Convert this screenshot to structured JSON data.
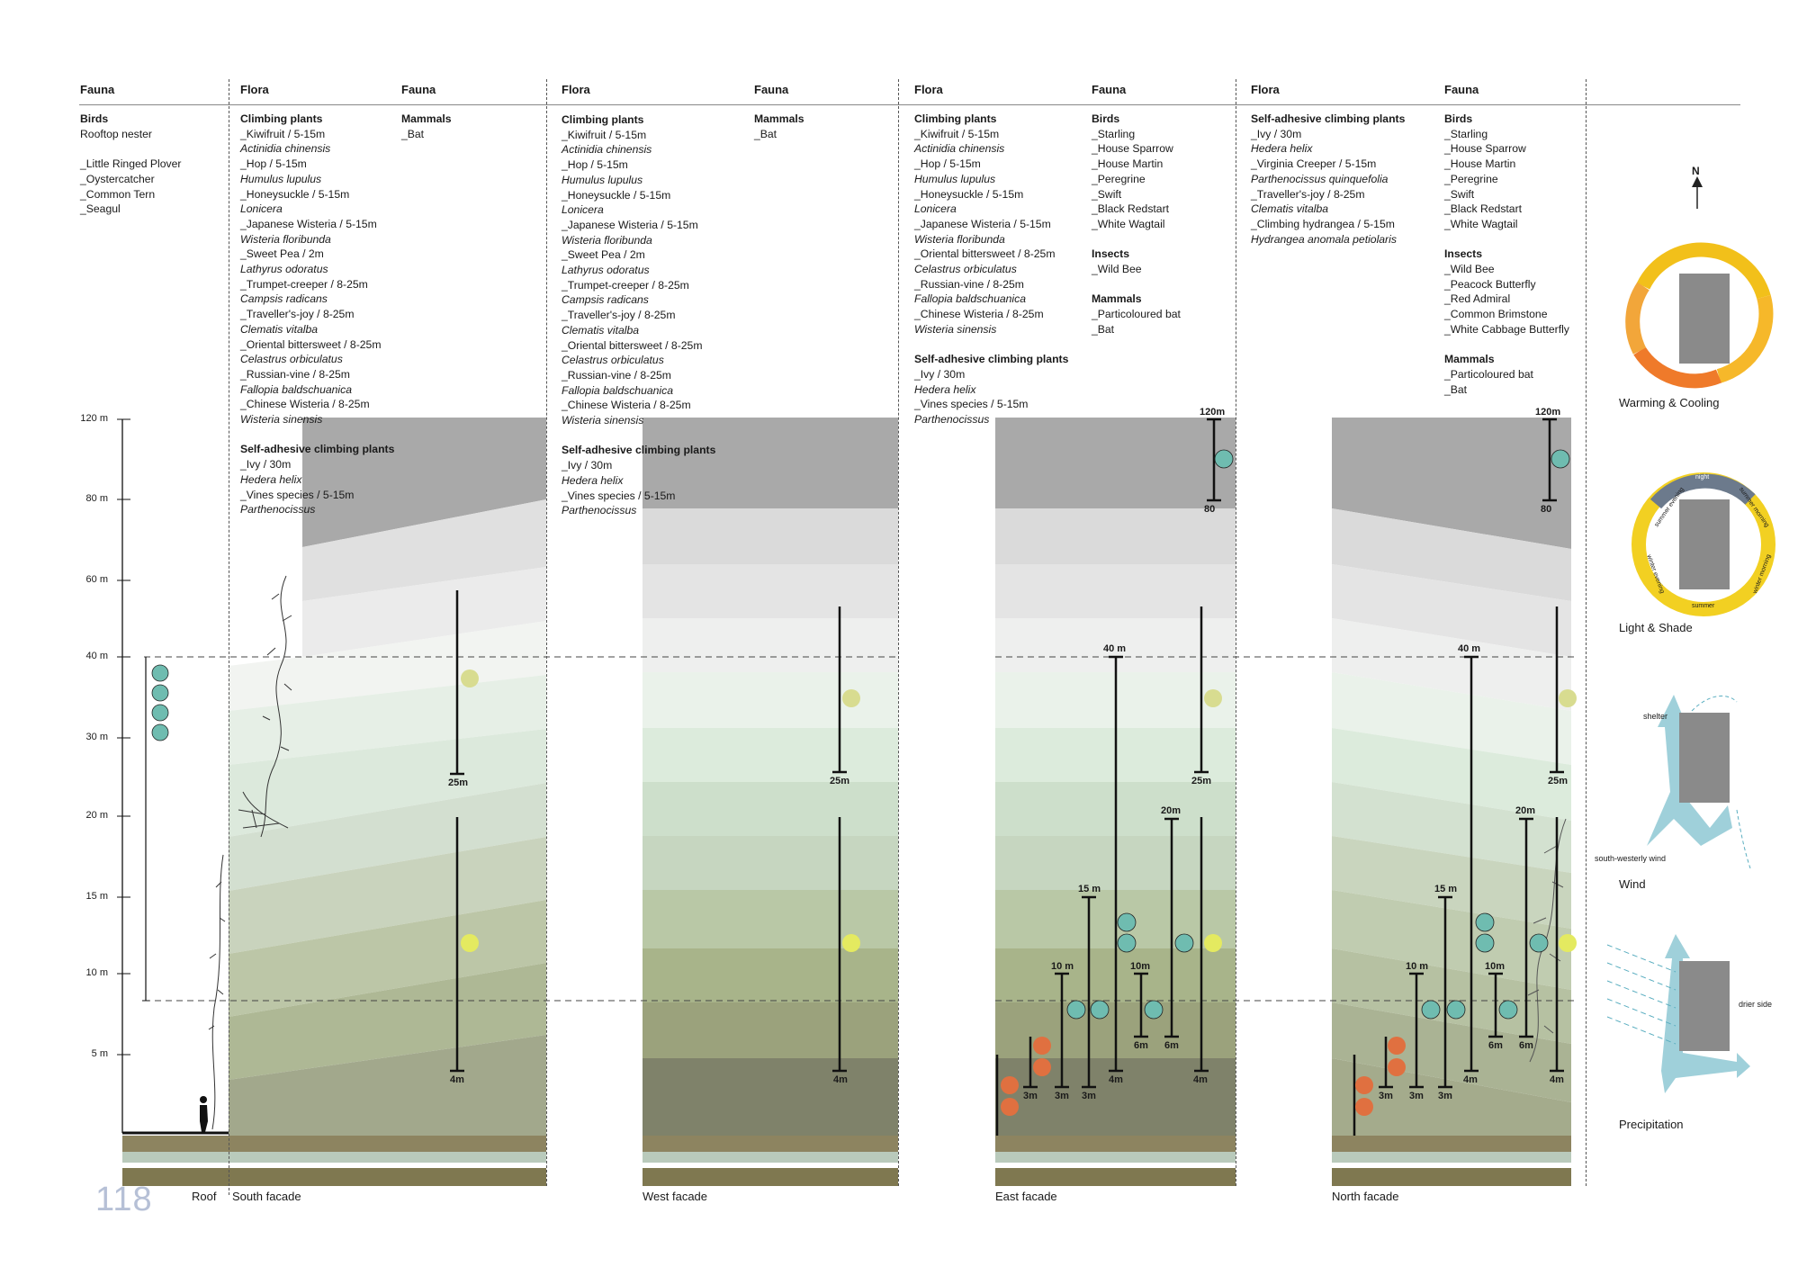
{
  "page_number": "118",
  "columns": [
    {
      "header": "Fauna",
      "content_key": "roof_fauna"
    },
    {
      "header": "Flora",
      "content_key": "south_flora"
    },
    {
      "header": "Fauna",
      "content_key": "south_fauna"
    },
    {
      "header": "Flora",
      "content_key": "west_flora"
    },
    {
      "header": "Fauna",
      "content_key": "west_fauna"
    },
    {
      "header": "Flora",
      "content_key": "east_flora"
    },
    {
      "header": "Fauna",
      "content_key": "east_fauna"
    },
    {
      "header": "Flora",
      "content_key": "north_flora"
    },
    {
      "header": "Fauna",
      "content_key": "north_fauna"
    }
  ],
  "roof_fauna": [
    {
      "t": "Birds",
      "s": "b"
    },
    {
      "t": "Rooftop nester"
    },
    {
      "t": ""
    },
    {
      "t": "_Little Ringed Plover"
    },
    {
      "t": "_Oystercatcher"
    },
    {
      "t": "_Common Tern"
    },
    {
      "t": "_Seagul"
    }
  ],
  "south_flora": [
    {
      "t": "Climbing plants",
      "s": "b"
    },
    {
      "t": "_Kiwifruit / 5-15m"
    },
    {
      "t": "Actinidia chinensis",
      "s": "it"
    },
    {
      "t": "_Hop / 5-15m"
    },
    {
      "t": "Humulus lupulus",
      "s": "it"
    },
    {
      "t": "_Honeysuckle / 5-15m"
    },
    {
      "t": "Lonicera",
      "s": "it"
    },
    {
      "t": "_Japanese Wisteria / 5-15m"
    },
    {
      "t": "Wisteria floribunda",
      "s": "it"
    },
    {
      "t": "_Sweet Pea / 2m"
    },
    {
      "t": "Lathyrus odoratus",
      "s": "it"
    },
    {
      "t": "_Trumpet-creeper / 8-25m"
    },
    {
      "t": "Campsis radicans",
      "s": "it"
    },
    {
      "t": "_Traveller's-joy / 8-25m"
    },
    {
      "t": "Clematis vitalba",
      "s": "it"
    },
    {
      "t": "_Oriental bittersweet / 8-25m"
    },
    {
      "t": "Celastrus orbiculatus",
      "s": "it"
    },
    {
      "t": "_Russian-vine / 8-25m"
    },
    {
      "t": "Fallopia baldschuanica",
      "s": "it"
    },
    {
      "t": "_Chinese Wisteria / 8-25m"
    },
    {
      "t": "Wisteria sinensis",
      "s": "it"
    },
    {
      "t": ""
    },
    {
      "t": "Self-adhesive climbing plants",
      "s": "b"
    },
    {
      "t": "_Ivy / 30m"
    },
    {
      "t": "Hedera helix",
      "s": "it"
    },
    {
      "t": "_Vines species / 5-15m"
    },
    {
      "t": "Parthenocissus",
      "s": "it"
    }
  ],
  "south_fauna": [
    {
      "t": "Mammals",
      "s": "b"
    },
    {
      "t": "_Bat"
    }
  ],
  "west_flora": [
    {
      "t": "Climbing plants",
      "s": "b"
    },
    {
      "t": "_Kiwifruit / 5-15m"
    },
    {
      "t": "Actinidia chinensis",
      "s": "it"
    },
    {
      "t": "_Hop / 5-15m"
    },
    {
      "t": "Humulus lupulus",
      "s": "it"
    },
    {
      "t": "_Honeysuckle / 5-15m"
    },
    {
      "t": "Lonicera",
      "s": "it"
    },
    {
      "t": "_Japanese Wisteria / 5-15m"
    },
    {
      "t": "Wisteria floribunda",
      "s": "it"
    },
    {
      "t": "_Sweet Pea / 2m"
    },
    {
      "t": "Lathyrus odoratus",
      "s": "it"
    },
    {
      "t": "_Trumpet-creeper / 8-25m"
    },
    {
      "t": "Campsis radicans",
      "s": "it"
    },
    {
      "t": "_Traveller's-joy / 8-25m"
    },
    {
      "t": "Clematis vitalba",
      "s": "it"
    },
    {
      "t": "_Oriental bittersweet / 8-25m"
    },
    {
      "t": "Celastrus orbiculatus",
      "s": "it"
    },
    {
      "t": "_Russian-vine / 8-25m"
    },
    {
      "t": "Fallopia baldschuanica",
      "s": "it"
    },
    {
      "t": "_Chinese Wisteria / 8-25m"
    },
    {
      "t": "Wisteria sinensis",
      "s": "it"
    },
    {
      "t": ""
    },
    {
      "t": "Self-adhesive climbing plants",
      "s": "b"
    },
    {
      "t": "_Ivy / 30m"
    },
    {
      "t": "Hedera helix",
      "s": "it"
    },
    {
      "t": "_Vines species / 5-15m"
    },
    {
      "t": "Parthenocissus",
      "s": "it"
    }
  ],
  "west_fauna": [
    {
      "t": "Mammals",
      "s": "b"
    },
    {
      "t": "_Bat"
    }
  ],
  "east_flora": [
    {
      "t": "Climbing plants",
      "s": "b"
    },
    {
      "t": "_Kiwifruit / 5-15m"
    },
    {
      "t": "Actinidia chinensis",
      "s": "it"
    },
    {
      "t": "_Hop / 5-15m"
    },
    {
      "t": "Humulus lupulus",
      "s": "it"
    },
    {
      "t": "_Honeysuckle / 5-15m"
    },
    {
      "t": "Lonicera",
      "s": "it"
    },
    {
      "t": "_Japanese Wisteria / 5-15m"
    },
    {
      "t": "Wisteria floribunda",
      "s": "it"
    },
    {
      "t": "_Oriental bittersweet / 8-25m"
    },
    {
      "t": "Celastrus orbiculatus",
      "s": "it"
    },
    {
      "t": "_Russian-vine / 8-25m"
    },
    {
      "t": "Fallopia baldschuanica",
      "s": "it"
    },
    {
      "t": "_Chinese Wisteria / 8-25m"
    },
    {
      "t": "Wisteria sinensis",
      "s": "it"
    },
    {
      "t": ""
    },
    {
      "t": "Self-adhesive climbing plants",
      "s": "b"
    },
    {
      "t": "_Ivy / 30m"
    },
    {
      "t": "Hedera helix",
      "s": "it"
    },
    {
      "t": "_Vines species  / 5-15m"
    },
    {
      "t": "Parthenocissus",
      "s": "it"
    }
  ],
  "east_fauna": [
    {
      "t": "Birds",
      "s": "b"
    },
    {
      "t": "_Starling"
    },
    {
      "t": "_House Sparrow"
    },
    {
      "t": "_House Martin"
    },
    {
      "t": "_Peregrine"
    },
    {
      "t": "_Swift"
    },
    {
      "t": "_Black Redstart"
    },
    {
      "t": "_White Wagtail"
    },
    {
      "t": ""
    },
    {
      "t": "Insects",
      "s": "b"
    },
    {
      "t": "_Wild Bee"
    },
    {
      "t": ""
    },
    {
      "t": "Mammals",
      "s": "b"
    },
    {
      "t": "_Particoloured bat"
    },
    {
      "t": "_Bat"
    }
  ],
  "north_flora": [
    {
      "t": "Self-adhesive climbing plants",
      "s": "b"
    },
    {
      "t": "_Ivy / 30m"
    },
    {
      "t": "Hedera helix",
      "s": "it"
    },
    {
      "t": "_Virginia Creeper / 5-15m"
    },
    {
      "t": "Parthenocissus quinquefolia",
      "s": "it"
    },
    {
      "t": "_Traveller's-joy / 8-25m"
    },
    {
      "t": "Clematis vitalba",
      "s": "it"
    },
    {
      "t": "_Climbing hydrangea / 5-15m"
    },
    {
      "t": "Hydrangea anomala petiolaris",
      "s": "it"
    }
  ],
  "north_fauna": [
    {
      "t": "Birds",
      "s": "b"
    },
    {
      "t": "_Starling"
    },
    {
      "t": "_House Sparrow"
    },
    {
      "t": "_House Martin"
    },
    {
      "t": "_Peregrine"
    },
    {
      "t": "_Swift"
    },
    {
      "t": "_Black Redstart"
    },
    {
      "t": "_White Wagtail"
    },
    {
      "t": ""
    },
    {
      "t": "Insects",
      "s": "b"
    },
    {
      "t": "_Wild Bee"
    },
    {
      "t": "_Peacock Butterfly"
    },
    {
      "t": "_Red Admiral"
    },
    {
      "t": "_Common Brimstone"
    },
    {
      "t": "_White Cabbage Butterfly"
    },
    {
      "t": ""
    },
    {
      "t": "Mammals",
      "s": "b"
    },
    {
      "t": "_Particoloured bat"
    },
    {
      "t": "_Bat"
    }
  ],
  "height_scale": {
    "labels": [
      "120 m",
      "80 m",
      "60 m",
      "40 m",
      "30 m",
      "20 m",
      "15 m",
      "10 m",
      "5 m"
    ]
  },
  "footer_labels": {
    "roof": "Roof",
    "south": "South facade",
    "west": "West facade",
    "east": "East facade",
    "north": "North facade"
  },
  "range_labels": {
    "south_bat_top": "25m",
    "south_bat_bottom": "4m",
    "west_bat_top": "25m",
    "west_bat_bottom": "4m",
    "east_peregrine_top": "120m",
    "east_peregrine_bottom": "80",
    "east_40": "40 m",
    "east_20": "20m",
    "east_15": "15 m",
    "east_10a": "10 m",
    "east_10b": "10m",
    "east_3a": "3m",
    "east_3b": "3m",
    "east_3c": "3m",
    "east_6a": "6m",
    "east_6b": "6m",
    "east_4a": "4m",
    "east_4b": "4m",
    "east_25": "25m",
    "north_peregrine_top": "120m",
    "north_peregrine_bottom": "80",
    "north_40": "40 m",
    "north_20": "20m",
    "north_15": "15 m",
    "north_10a": "10 m",
    "north_10b": "10m",
    "north_3a": "3m",
    "north_3b": "3m",
    "north_3c": "3m",
    "north_6a": "6m",
    "north_6b": "6m",
    "north_4a": "4m",
    "north_4b": "4m",
    "north_25": "25m"
  },
  "legend": {
    "north": "N",
    "warming": "Warming & Cooling",
    "light": "Light & Shade",
    "wind": "Wind",
    "precip": "Precipitation",
    "shelter": "shelter",
    "sw_wind": "south-westerly wind",
    "drier": "drier side",
    "seasons": [
      "night",
      "summer morning",
      "summer evening",
      "winter morning",
      "winter evening",
      "summer",
      "winter"
    ]
  },
  "colors": {
    "teal": "#6fbcb0",
    "orange": "#e07040",
    "bat": "#d8dc90",
    "grey_top": "#a8a8a8"
  }
}
